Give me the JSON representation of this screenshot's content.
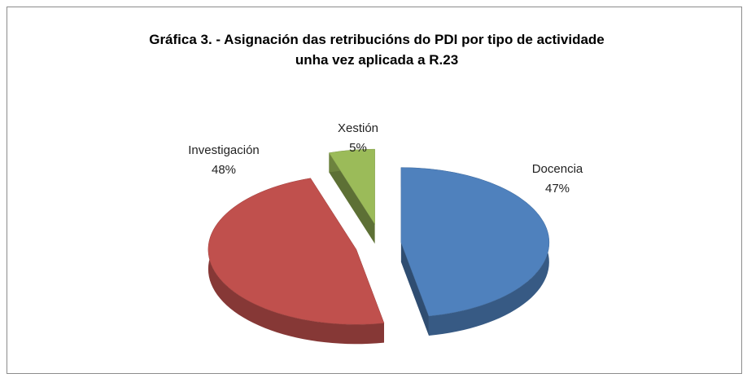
{
  "chart_data": {
    "type": "pie3d",
    "title": "Gráfica 3. - Asignación das retribucións do PDI por tipo de actividade\nunha vez aplicada a R.23",
    "categories": [
      "Docencia",
      "Investigación",
      "Xestión"
    ],
    "values": [
      47,
      48,
      5
    ],
    "value_labels": [
      "47%",
      "48%",
      "5%"
    ],
    "colors": [
      "#4f81bd",
      "#c0504d",
      "#9bbb59"
    ]
  }
}
